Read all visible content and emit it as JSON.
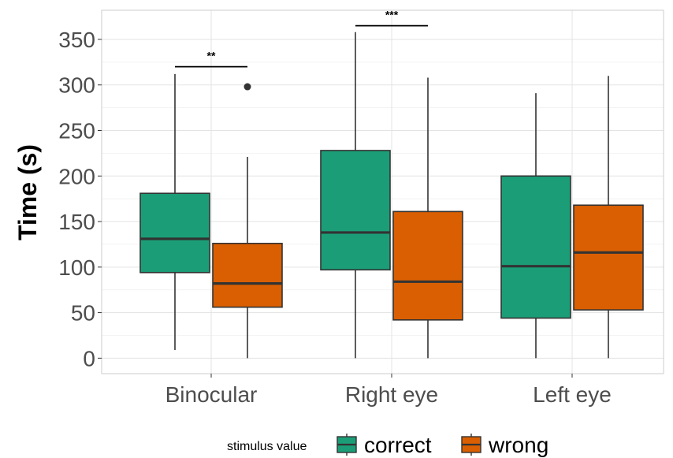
{
  "chart_data": {
    "type": "boxplot",
    "title": "",
    "xlabel": "",
    "ylabel": "Time (s)",
    "ylim": [
      -17,
      382
    ],
    "yticks": [
      0,
      50,
      100,
      150,
      200,
      250,
      300,
      350
    ],
    "categories": [
      "Binocular",
      "Right eye",
      "Left eye"
    ],
    "grid": true,
    "legend": {
      "title": "stimulus value",
      "placement": "bottom",
      "entries": [
        {
          "name": "correct",
          "color": "#1b9e77"
        },
        {
          "name": "wrong",
          "color": "#d95f02"
        }
      ]
    },
    "series": [
      {
        "name": "correct",
        "color": "#1b9e77",
        "boxes": [
          {
            "category": "Binocular",
            "min": 9,
            "q1": 94,
            "median": 131,
            "q3": 181,
            "max": 312,
            "outliers": []
          },
          {
            "category": "Right eye",
            "min": 0,
            "q1": 97,
            "median": 138,
            "q3": 228,
            "max": 358,
            "outliers": []
          },
          {
            "category": "Left eye",
            "min": 0,
            "q1": 44,
            "median": 101,
            "q3": 200,
            "max": 291,
            "outliers": []
          }
        ]
      },
      {
        "name": "wrong",
        "color": "#d95f02",
        "boxes": [
          {
            "category": "Binocular",
            "min": 0,
            "q1": 56,
            "median": 82,
            "q3": 126,
            "max": 221,
            "outliers": [
              298
            ]
          },
          {
            "category": "Right eye",
            "min": 0,
            "q1": 42,
            "median": 84,
            "q3": 161,
            "max": 308,
            "outliers": []
          },
          {
            "category": "Left eye",
            "min": 0,
            "q1": 53,
            "median": 116,
            "q3": 168,
            "max": 310,
            "outliers": []
          }
        ]
      }
    ],
    "annotations": [
      {
        "category": "Binocular",
        "label": "**",
        "y": 320
      },
      {
        "category": "Right eye",
        "label": "***",
        "y": 365
      }
    ]
  }
}
